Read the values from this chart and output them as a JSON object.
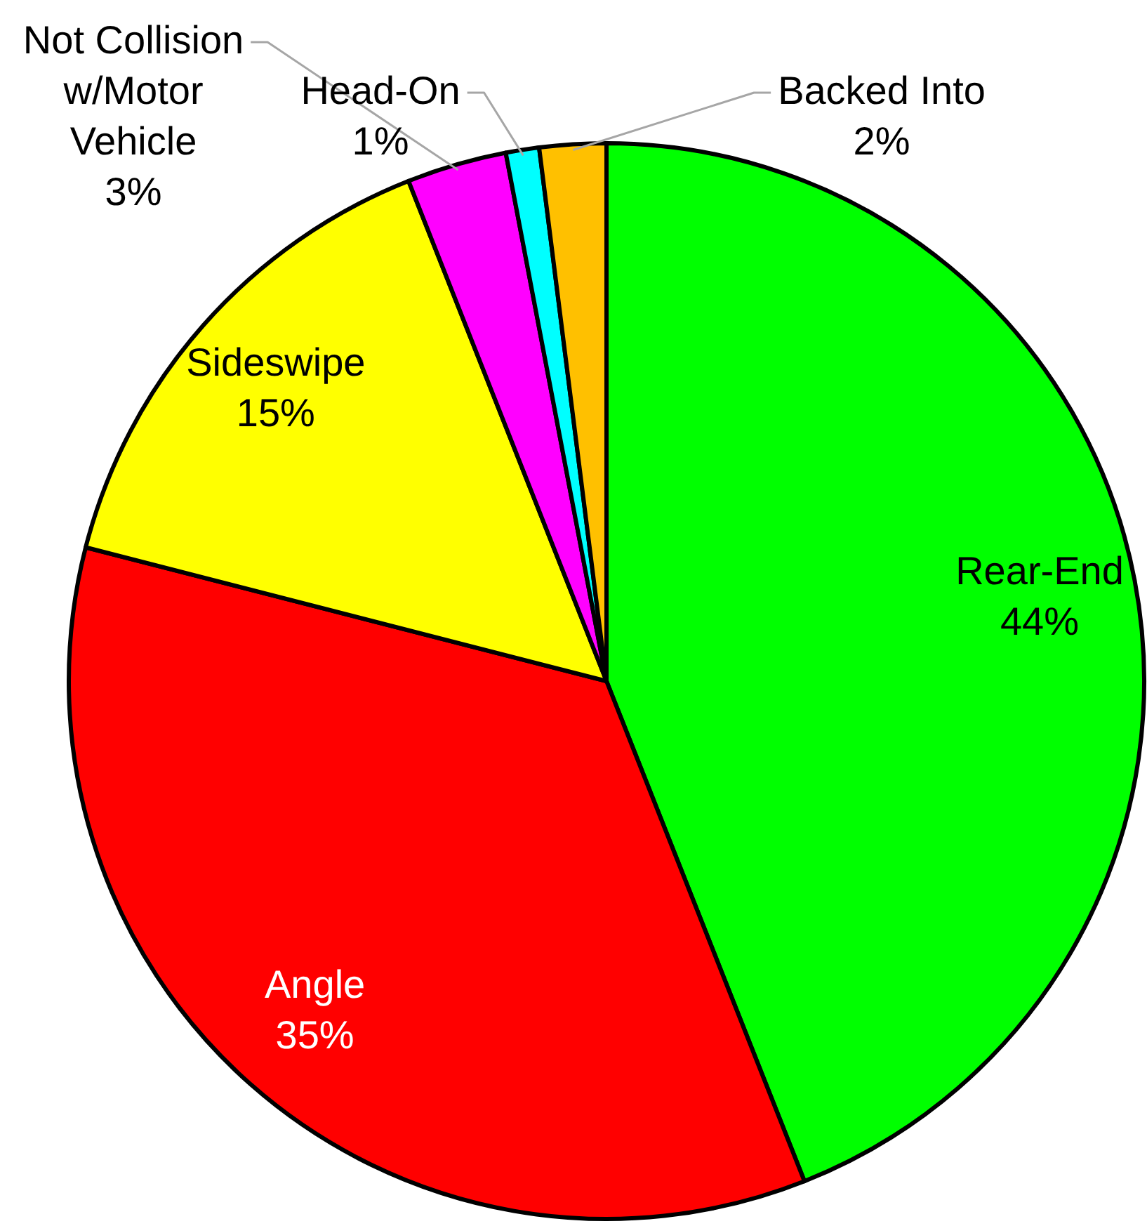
{
  "chart_data": {
    "type": "pie",
    "categories": [
      "Rear-End",
      "Angle",
      "Sideswipe",
      "Not Collision w/Motor Vehicle",
      "Head-On",
      "Backed Into"
    ],
    "values": [
      44,
      35,
      15,
      3,
      1,
      2
    ],
    "colors": [
      "#00ff00",
      "#ff0000",
      "#ffff00",
      "#ff00ff",
      "#00ffff",
      "#ffc000"
    ],
    "value_labels": [
      "44%",
      "35%",
      "15%",
      "3%",
      "1%",
      "2%"
    ]
  }
}
